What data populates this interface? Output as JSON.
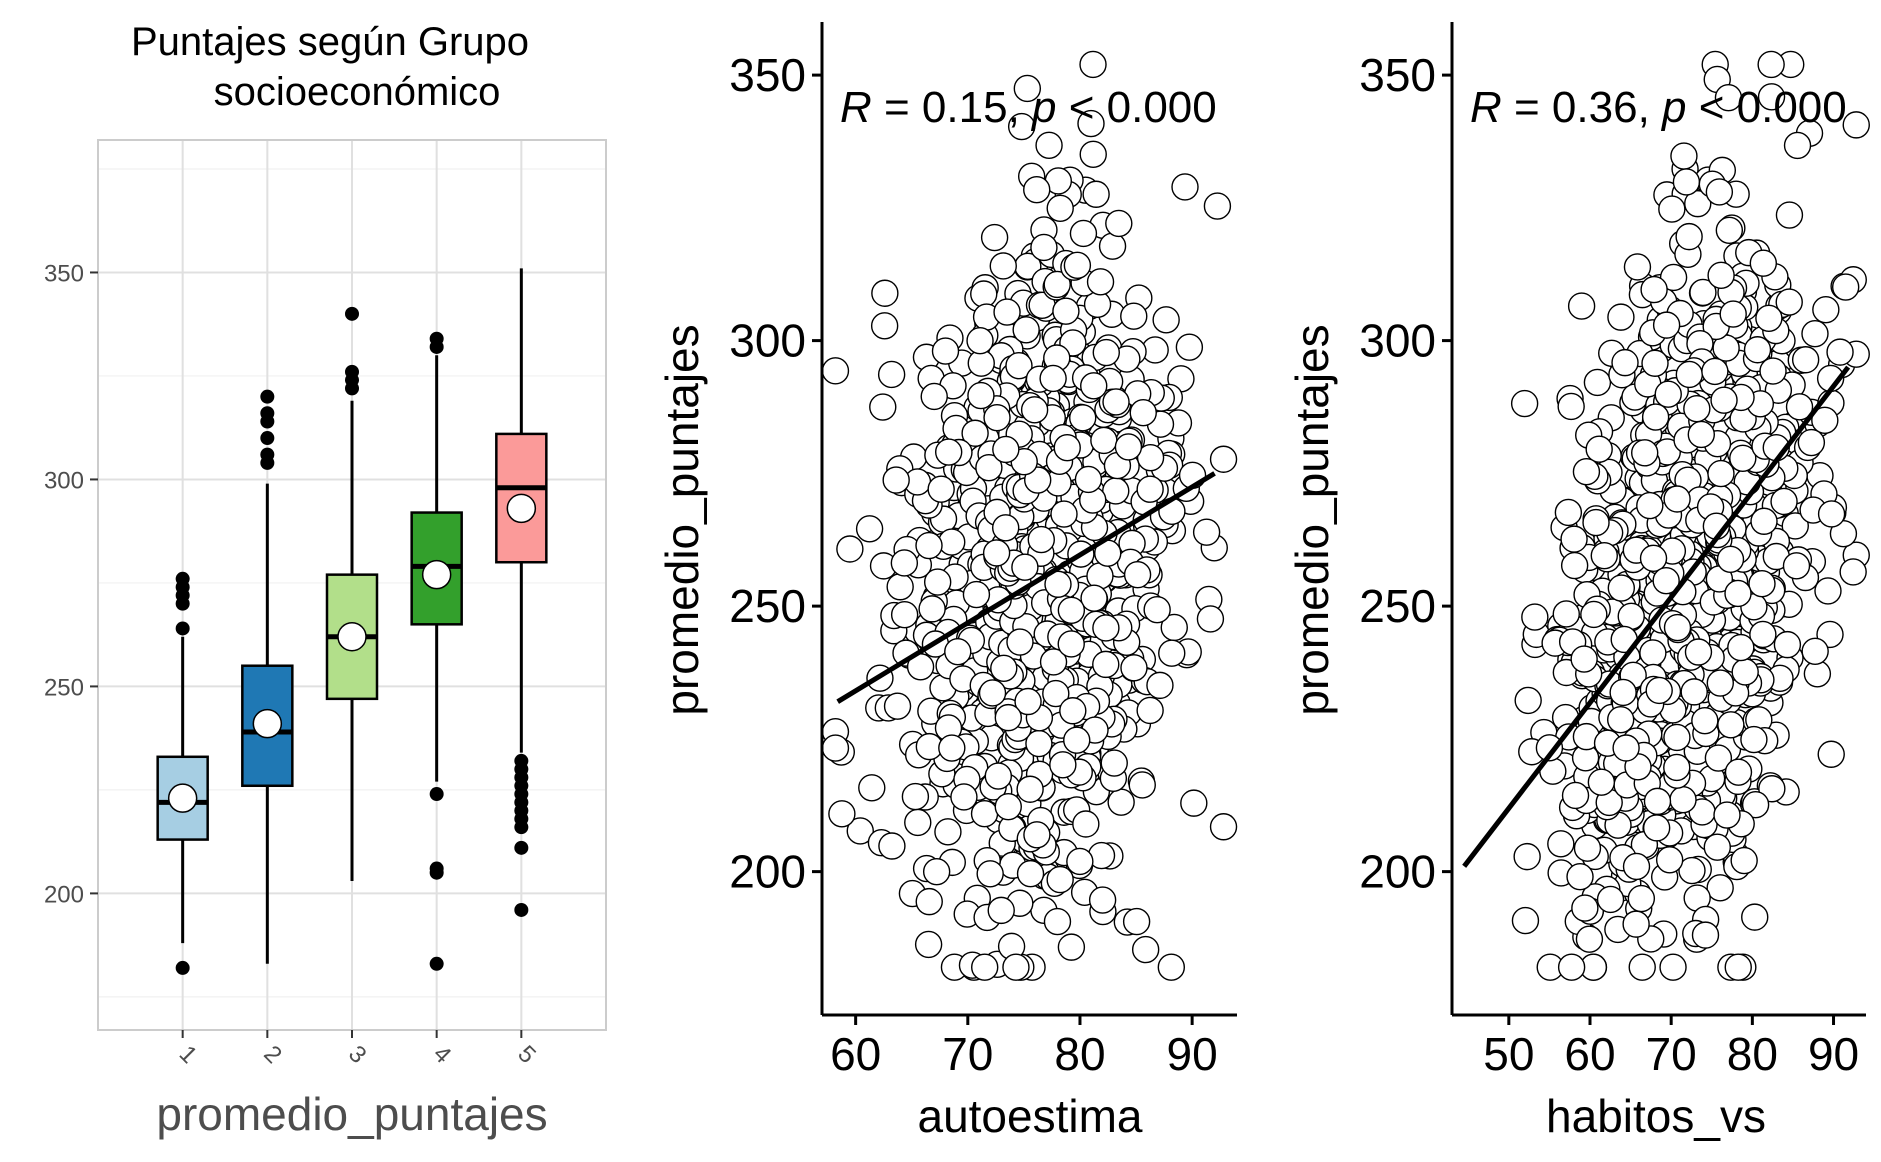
{
  "chart_data": [
    {
      "type": "box",
      "title_line1": "Puntajes según Grupo",
      "title_line2": "socioeconómico",
      "xlabel": "promedio_puntajes",
      "ylabel": "",
      "categories": [
        "1",
        "2",
        "3",
        "4",
        "5"
      ],
      "yticks": [
        "350",
        "300",
        "250",
        "200"
      ],
      "ytick_values": [
        350,
        300,
        250,
        200
      ],
      "ylim": [
        167,
        382
      ],
      "grid": true,
      "colors": [
        "#a6cee3",
        "#1f78b4",
        "#b2df8a",
        "#33a02c",
        "#fb9a99"
      ],
      "boxes": [
        {
          "q1": 213,
          "median": 222,
          "q3": 233,
          "whisker_low": 188,
          "whisker_high": 262,
          "mean": 223,
          "outliers": [
            182,
            264,
            270,
            272,
            274,
            276
          ]
        },
        {
          "q1": 226,
          "median": 239,
          "q3": 255,
          "whisker_low": 183,
          "whisker_high": 299,
          "mean": 241,
          "outliers": [
            304,
            306,
            310,
            314,
            316,
            320
          ]
        },
        {
          "q1": 247,
          "median": 262,
          "q3": 277,
          "whisker_low": 203,
          "whisker_high": 319,
          "mean": 262,
          "outliers": [
            322,
            324,
            326,
            340
          ]
        },
        {
          "q1": 265,
          "median": 279,
          "q3": 292,
          "whisker_low": 227,
          "whisker_high": 330,
          "mean": 277,
          "outliers": [
            183,
            205,
            206,
            224,
            332,
            334
          ]
        },
        {
          "q1": 280,
          "median": 298,
          "q3": 311,
          "whisker_low": 234,
          "whisker_high": 351,
          "mean": 293,
          "outliers": [
            196,
            211,
            216,
            218,
            220,
            222,
            224,
            226,
            228,
            230,
            232
          ]
        }
      ]
    },
    {
      "type": "scatter",
      "xlabel": "autoestima",
      "ylabel": "promedio_puntajes",
      "xticks": [
        "60",
        "70",
        "80",
        "90"
      ],
      "xtick_values": [
        60,
        70,
        80,
        90
      ],
      "yticks": [
        "350",
        "300",
        "250",
        "200"
      ],
      "ytick_values": [
        350,
        300,
        250,
        200
      ],
      "xlim": [
        57,
        94
      ],
      "ylim": [
        173,
        360
      ],
      "annotation_R": "R",
      "annotation_eq": " = 0.15, ",
      "annotation_p": "p",
      "annotation_rest": " < 0.000",
      "fit_line": {
        "x": [
          58.4,
          92.0
        ],
        "y": [
          232,
          275
        ]
      },
      "n_points": 1000,
      "x_mean": 76,
      "x_sd": 6,
      "y_mean": 255,
      "y_sd": 32,
      "r": 0.15
    },
    {
      "type": "scatter",
      "xlabel": "habitos_vs",
      "ylabel": "promedio_puntajes",
      "xticks": [
        "50",
        "60",
        "70",
        "80",
        "90"
      ],
      "xtick_values": [
        50,
        60,
        70,
        80,
        90
      ],
      "yticks": [
        "350",
        "300",
        "250",
        "200"
      ],
      "ytick_values": [
        350,
        300,
        250,
        200
      ],
      "xlim": [
        43,
        94
      ],
      "ylim": [
        173,
        360
      ],
      "annotation_R": "R",
      "annotation_eq": " = 0.36, ",
      "annotation_p": "p",
      "annotation_rest": " < 0.000",
      "fit_line": {
        "x": [
          44.5,
          91.8
        ],
        "y": [
          201,
          295
        ]
      },
      "n_points": 1000,
      "x_mean": 72,
      "x_sd": 8,
      "y_mean": 255,
      "y_sd": 32,
      "r": 0.36
    }
  ]
}
